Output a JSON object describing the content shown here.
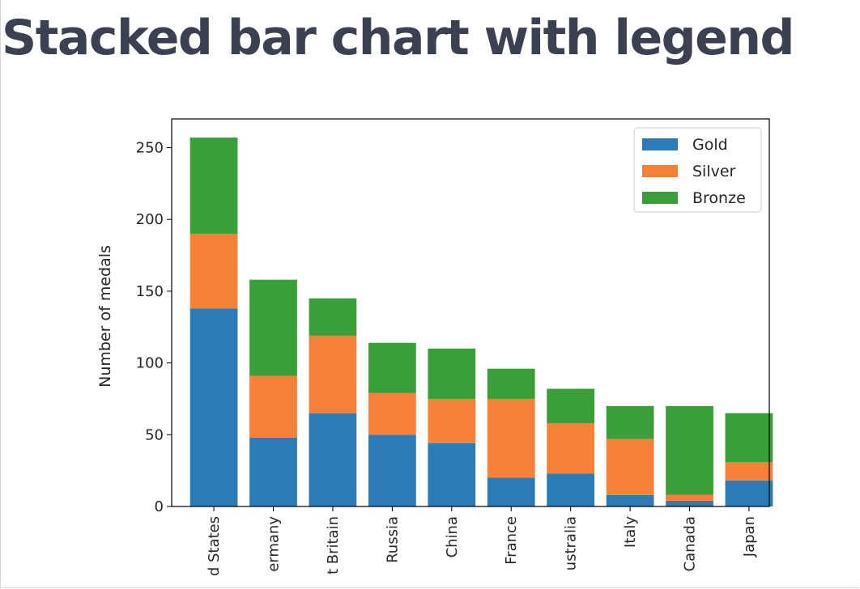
{
  "page": {
    "title": "Stacked bar chart with legend"
  },
  "chart_data": {
    "type": "bar",
    "stacked": true,
    "categories": [
      "United States",
      "Germany",
      "Great Britain",
      "Russia",
      "China",
      "France",
      "Australia",
      "Italy",
      "Canada",
      "Japan"
    ],
    "visible_tick_labels": [
      "d States",
      "ermany",
      "t Britain",
      "Russia",
      "China",
      "France",
      "ustralia",
      "Italy",
      "Canada",
      "Japan"
    ],
    "series": [
      {
        "name": "Gold",
        "color": "#2c7bb6",
        "values": [
          138,
          48,
          65,
          50,
          44,
          20,
          23,
          8,
          4,
          18
        ]
      },
      {
        "name": "Silver",
        "color": "#f8813a",
        "values": [
          52,
          43,
          54,
          29,
          31,
          55,
          35,
          39,
          4,
          13
        ]
      },
      {
        "name": "Bronze",
        "color": "#3a9f3a",
        "values": [
          67,
          67,
          26,
          35,
          35,
          21,
          24,
          23,
          62,
          34
        ]
      }
    ],
    "title": "",
    "xlabel": "",
    "ylabel": "Number of medals",
    "ylim": [
      0,
      270
    ],
    "yticks": [
      0,
      50,
      100,
      150,
      200,
      250
    ],
    "grid": false,
    "legend": "top-right"
  }
}
